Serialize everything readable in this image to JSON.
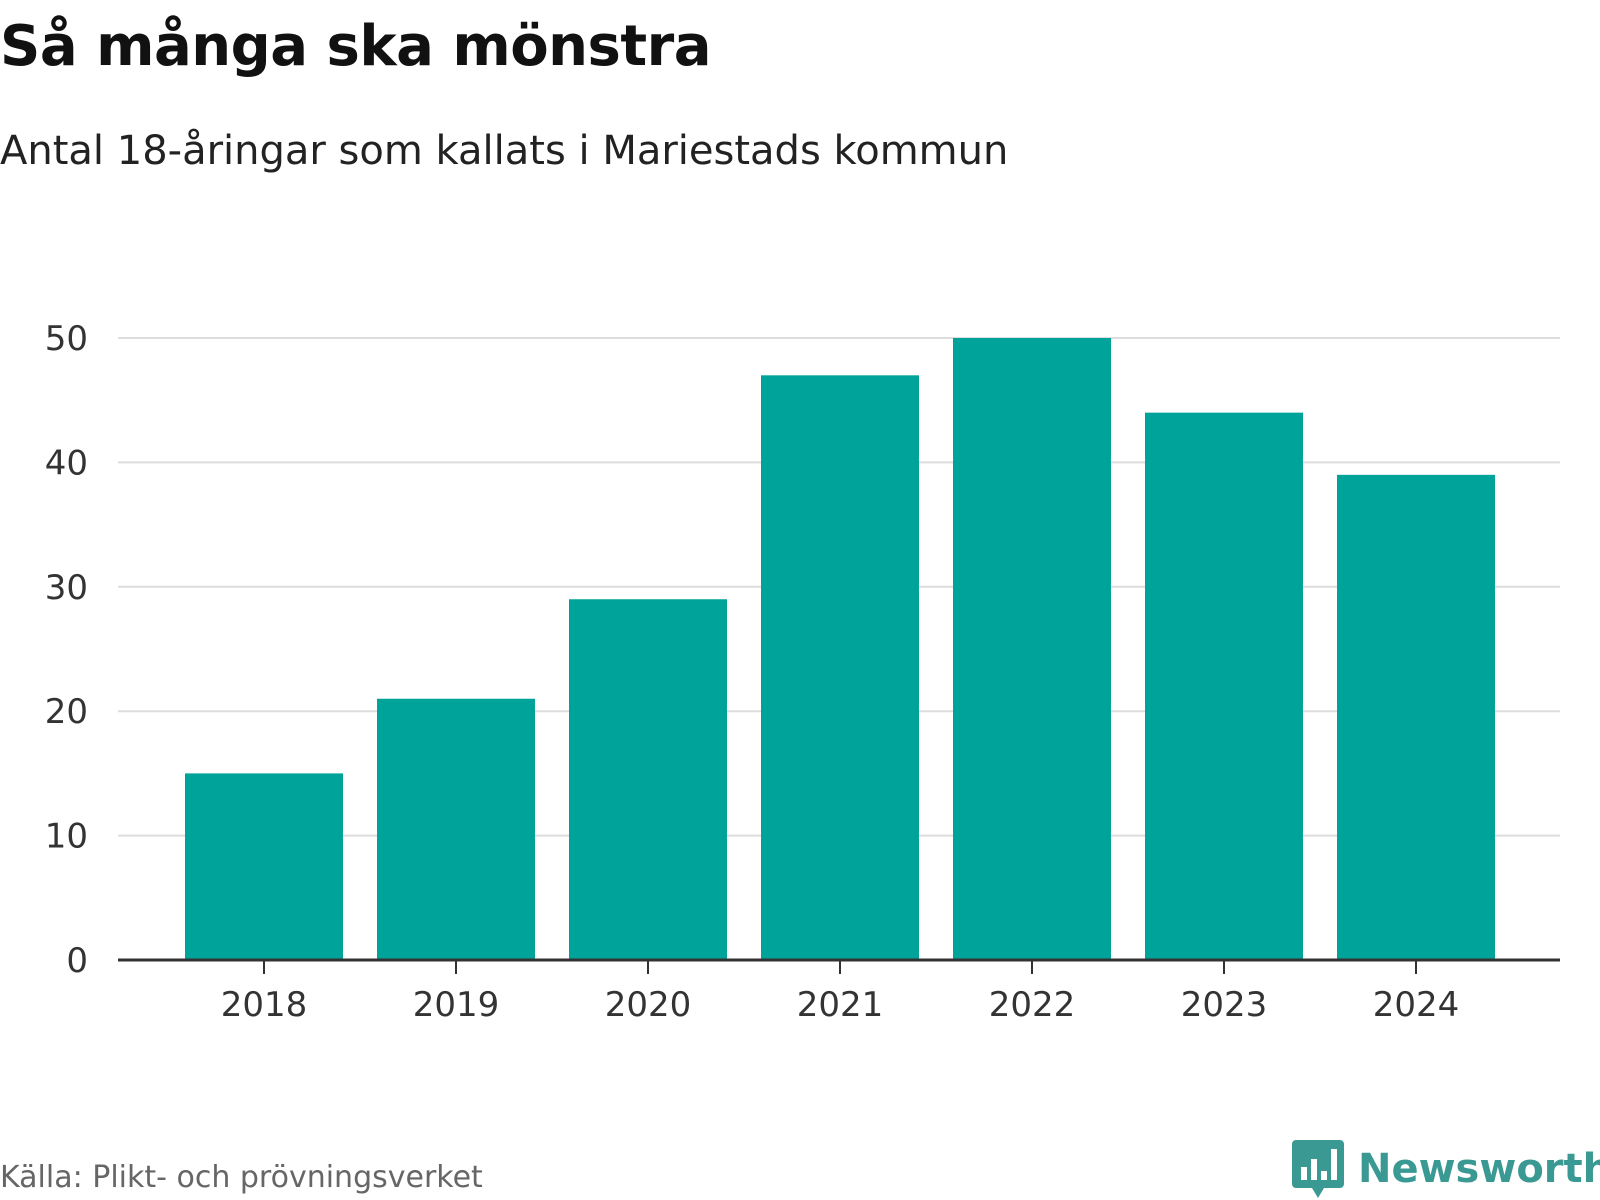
{
  "header": {
    "title": "Så många ska mönstra",
    "subtitle": "Antal 18-åringar som kallats i Mariestads kommun"
  },
  "footer": {
    "source": "Källa: Plikt- och prövningsverket",
    "brand": "Newsworthy",
    "brand_icon": "speech-bubble-bar-chart-icon"
  },
  "colors": {
    "bar": "#00A39A",
    "grid": "#dddddd",
    "axis": "#333333",
    "brand": "#3a9a93"
  },
  "chart_data": {
    "type": "bar",
    "title": "Så många ska mönstra",
    "subtitle": "Antal 18-åringar som kallats i Mariestads kommun",
    "categories": [
      "2018",
      "2019",
      "2020",
      "2021",
      "2022",
      "2023",
      "2024"
    ],
    "values": [
      15,
      21,
      29,
      47,
      50,
      44,
      39
    ],
    "yticks": [
      0,
      10,
      20,
      30,
      40,
      50
    ],
    "ylim": [
      0,
      50
    ],
    "xlabel": "",
    "ylabel": "",
    "grid": true,
    "legend": "none"
  }
}
